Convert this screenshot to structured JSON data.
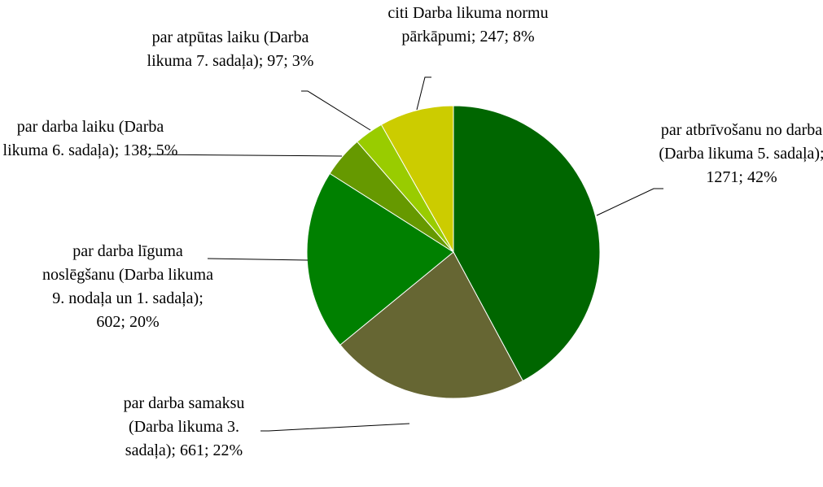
{
  "chart_data": {
    "type": "pie",
    "categories": [
      "par atbrīvošanu no darba (Darba likuma 5. sadaļa);",
      "par darba samaksu (Darba likuma 3. sadaļa);",
      "par darba līguma noslēgšanu (Darba likuma 9. nodaļa un 1. sadaļa);",
      "par darba laiku (Darba likuma 6. sadaļa);",
      "par atpūtas laiku (Darba likuma 7. sadaļa);",
      "citi Darba likuma normu pārkāpumi;"
    ],
    "values": [
      1271,
      661,
      602,
      138,
      97,
      247
    ],
    "value_labels": [
      "1271; 42%",
      "661; 22%",
      "602; 20%",
      "138; 5%",
      "97; 3%",
      "247; 8%"
    ],
    "colors": [
      "#006600",
      "#666633",
      "#008000",
      "#669900",
      "#99cc00",
      "#cccc00"
    ]
  }
}
